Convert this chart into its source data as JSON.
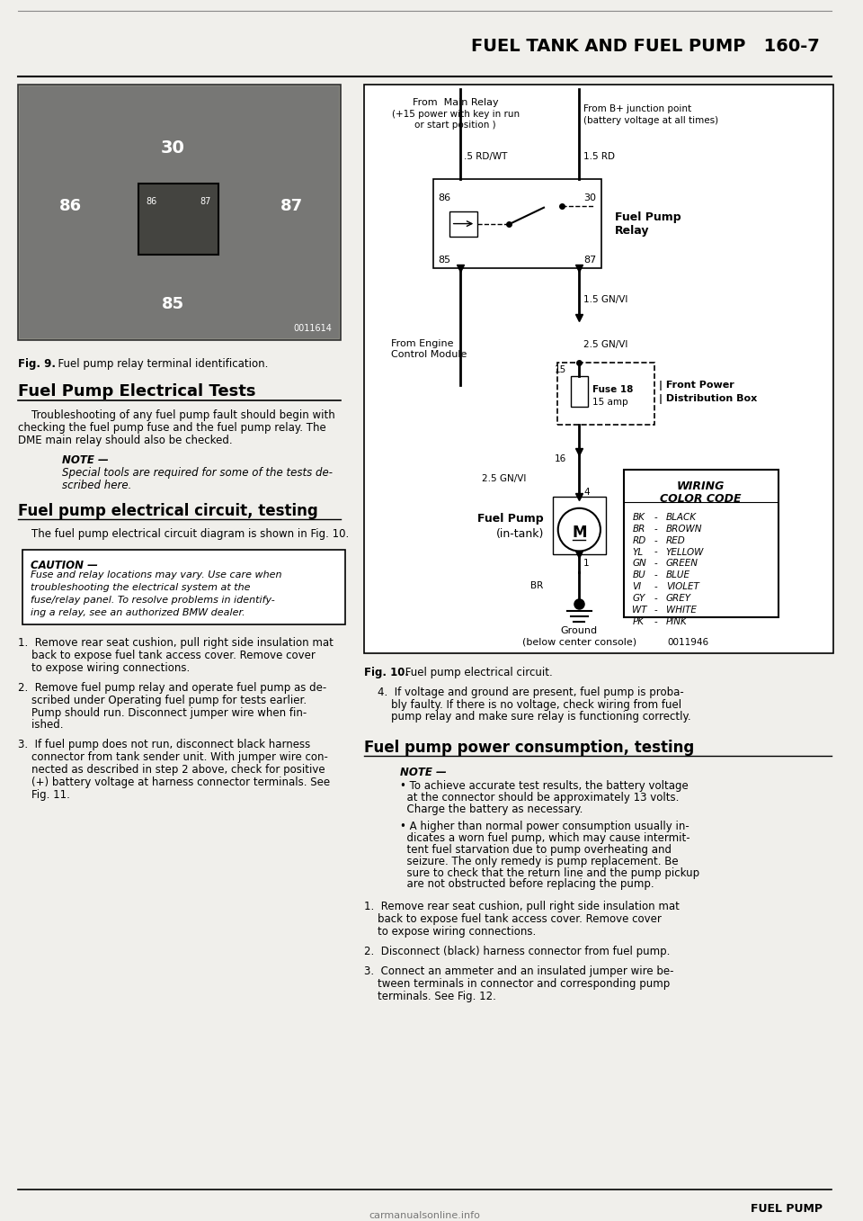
{
  "page_title": "FUEL TANK AND FUEL PUMP",
  "page_number": "160-7",
  "fig9_caption_bold": "Fig. 9.",
  "fig9_caption_rest": "  Fuel pump relay terminal identification.",
  "fig10_caption_bold": "Fig. 10.",
  "fig10_caption_rest": " Fuel pump electrical circuit.",
  "section_title": "Fuel Pump Electrical Tests",
  "section_text_lines": [
    "    Troubleshooting of any fuel pump fault should begin with",
    "checking the fuel pump fuse and the fuel pump relay. The",
    "DME main relay should also be checked."
  ],
  "note_label": "NOTE —",
  "note_text_lines": [
    "Special tools are required for some of the tests de-",
    "scribed here."
  ],
  "subsection_title": "Fuel pump electrical circuit, testing",
  "subsection_text": "    The fuel pump electrical circuit diagram is shown in Fig. 10.",
  "caution_label": "CAUTION —",
  "caution_text_lines": [
    "Fuse and relay locations may vary. Use care when",
    "troubleshooting the electrical system at the",
    "fuse/relay panel. To resolve problems in identify-",
    "ing a relay, see an authorized BMW dealer."
  ],
  "step1_lines": [
    "1.  Remove rear seat cushion, pull right side insulation mat",
    "    back to expose fuel tank access cover. Remove cover",
    "    to expose wiring connections."
  ],
  "step2_lines": [
    "2.  Remove fuel pump relay and operate fuel pump as de-",
    "    scribed under Operating fuel pump for tests earlier.",
    "    Pump should run. Disconnect jumper wire when fin-",
    "    ished."
  ],
  "step3_lines": [
    "3.  If fuel pump does not run, disconnect black harness",
    "    connector from tank sender unit. With jumper wire con-",
    "    nected as described in step 2 above, check for positive",
    "    (+) battery voltage at harness connector terminals. See",
    "    Fig. 11."
  ],
  "step4_lines": [
    "4.  If voltage and ground are present, fuel pump is proba-",
    "    bly faulty. If there is no voltage, check wiring from fuel",
    "    pump relay and make sure relay is functioning correctly."
  ],
  "fuel_pump_power_title": "Fuel pump power consumption, testing",
  "note2_label": "NOTE —",
  "note2_text_lines": [
    "• To achieve accurate test results, the battery voltage",
    "  at the connector should be approximately 13 volts.",
    "  Charge the battery as necessary.",
    "",
    "• A higher than normal power consumption usually in-",
    "  dicates a worn fuel pump, which may cause intermit-",
    "  tent fuel starvation due to pump overheating and",
    "  seizure. The only remedy is pump replacement. Be",
    "  sure to check that the return line and the pump pickup",
    "  are not obstructed before replacing the pump."
  ],
  "step_r1_lines": [
    "1.  Remove rear seat cushion, pull right side insulation mat",
    "    back to expose fuel tank access cover. Remove cover",
    "    to expose wiring connections."
  ],
  "step_r2": "2.  Disconnect (black) harness connector from fuel pump.",
  "step_r3_lines": [
    "3.  Connect an ammeter and an insulated jumper wire be-",
    "    tween terminals in connector and corresponding pump",
    "    terminals. See Fig. 12."
  ],
  "footer_text": "FUEL PUMP",
  "website": "carmanualsonline.info",
  "bg_color": "#f0efeb",
  "text_color": "#1a1a1a",
  "photo_color": "#888880",
  "photo_id": "0011614",
  "diagram_id": "0011946",
  "wiring_codes": [
    [
      "BK",
      "BLACK"
    ],
    [
      "BR",
      "BROWN"
    ],
    [
      "RD",
      "RED"
    ],
    [
      "YL",
      "YELLOW"
    ],
    [
      "GN",
      "GREEN"
    ],
    [
      "BU",
      "BLUE"
    ],
    [
      "VI",
      "VIOLET"
    ],
    [
      "GY",
      "GREY"
    ],
    [
      "WT",
      "WHITE"
    ],
    [
      "PK",
      "PINK"
    ]
  ]
}
